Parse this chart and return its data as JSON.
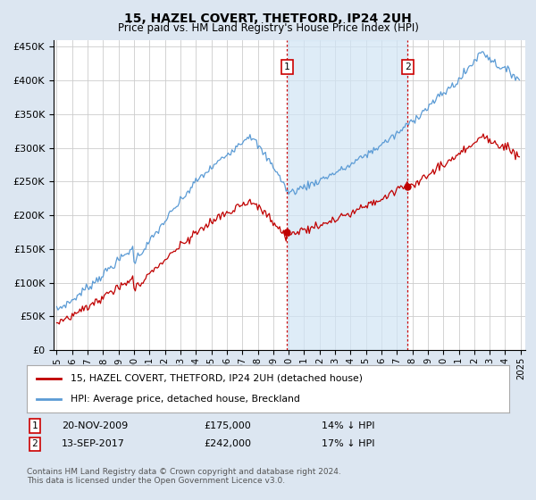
{
  "title": "15, HAZEL COVERT, THETFORD, IP24 2UH",
  "subtitle": "Price paid vs. HM Land Registry's House Price Index (HPI)",
  "legend_line1": "15, HAZEL COVERT, THETFORD, IP24 2UH (detached house)",
  "legend_line2": "HPI: Average price, detached house, Breckland",
  "annotation1_label": "1",
  "annotation1_date": "20-NOV-2009",
  "annotation1_price": "£175,000",
  "annotation1_hpi": "14% ↓ HPI",
  "annotation1_year": 2009.9,
  "annotation1_value": 175000,
  "annotation2_label": "2",
  "annotation2_date": "13-SEP-2017",
  "annotation2_price": "£242,000",
  "annotation2_hpi": "17% ↓ HPI",
  "annotation2_year": 2017.7,
  "annotation2_value": 242000,
  "footer": "Contains HM Land Registry data © Crown copyright and database right 2024.\nThis data is licensed under the Open Government Licence v3.0.",
  "hpi_color": "#5b9bd5",
  "price_color": "#c00000",
  "vline_color": "#cc0000",
  "shade_color": "#d0e4f5",
  "background_color": "#dce6f1",
  "plot_bg": "#ffffff",
  "ylim": [
    0,
    460000
  ],
  "xlim_start": 1994.8,
  "xlim_end": 2025.3
}
